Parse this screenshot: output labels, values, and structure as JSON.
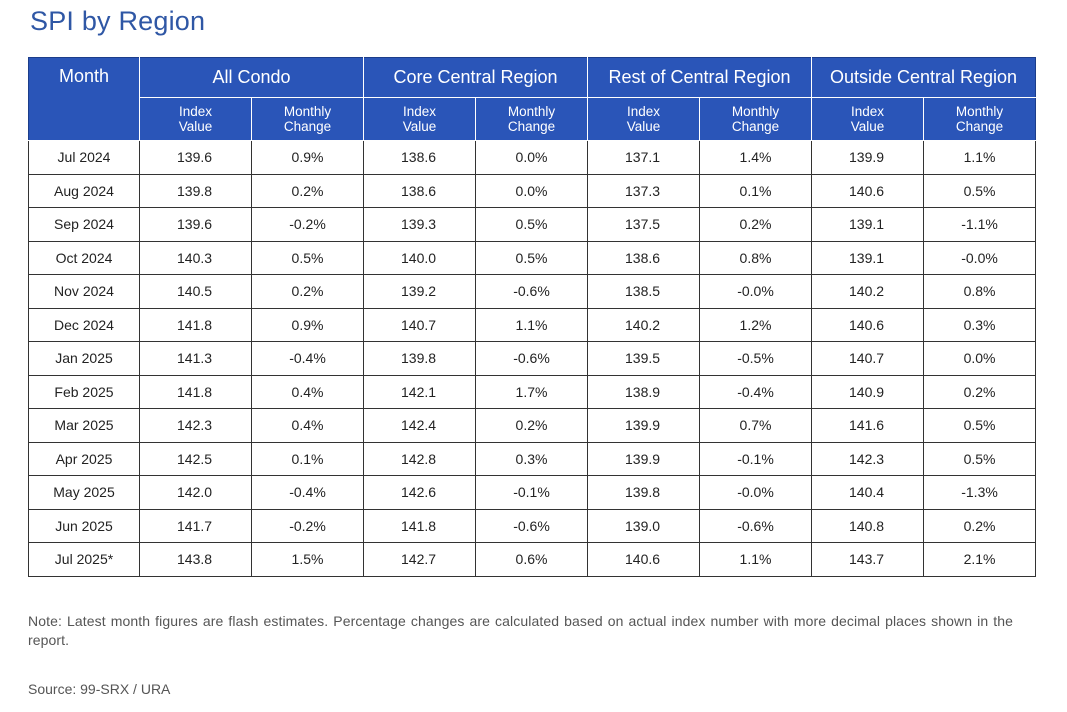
{
  "title": "SPI by Region",
  "header": {
    "month": "Month",
    "groups": [
      "All Condo",
      "Core Central Region",
      "Rest of Central Region",
      "Outside Central Region"
    ],
    "sub_index_1": "Index",
    "sub_index_2": "Value",
    "sub_change_1": "Monthly",
    "sub_change_2": "Change"
  },
  "rows": [
    [
      "Jul 2024",
      "139.6",
      "0.9%",
      "138.6",
      "0.0%",
      "137.1",
      "1.4%",
      "139.9",
      "1.1%"
    ],
    [
      "Aug 2024",
      "139.8",
      "0.2%",
      "138.6",
      "0.0%",
      "137.3",
      "0.1%",
      "140.6",
      "0.5%"
    ],
    [
      "Sep 2024",
      "139.6",
      "-0.2%",
      "139.3",
      "0.5%",
      "137.5",
      "0.2%",
      "139.1",
      "-1.1%"
    ],
    [
      "Oct 2024",
      "140.3",
      "0.5%",
      "140.0",
      "0.5%",
      "138.6",
      "0.8%",
      "139.1",
      "-0.0%"
    ],
    [
      "Nov 2024",
      "140.5",
      "0.2%",
      "139.2",
      "-0.6%",
      "138.5",
      "-0.0%",
      "140.2",
      "0.8%"
    ],
    [
      "Dec 2024",
      "141.8",
      "0.9%",
      "140.7",
      "1.1%",
      "140.2",
      "1.2%",
      "140.6",
      "0.3%"
    ],
    [
      "Jan 2025",
      "141.3",
      "-0.4%",
      "139.8",
      "-0.6%",
      "139.5",
      "-0.5%",
      "140.7",
      "0.0%"
    ],
    [
      "Feb 2025",
      "141.8",
      "0.4%",
      "142.1",
      "1.7%",
      "138.9",
      "-0.4%",
      "140.9",
      "0.2%"
    ],
    [
      "Mar 2025",
      "142.3",
      "0.4%",
      "142.4",
      "0.2%",
      "139.9",
      "0.7%",
      "141.6",
      "0.5%"
    ],
    [
      "Apr 2025",
      "142.5",
      "0.1%",
      "142.8",
      "0.3%",
      "139.9",
      "-0.1%",
      "142.3",
      "0.5%"
    ],
    [
      "May 2025",
      "142.0",
      "-0.4%",
      "142.6",
      "-0.1%",
      "139.8",
      "-0.0%",
      "140.4",
      "-1.3%"
    ],
    [
      "Jun 2025",
      "141.7",
      "-0.2%",
      "141.8",
      "-0.6%",
      "139.0",
      "-0.6%",
      "140.8",
      "0.2%"
    ],
    [
      "Jul 2025*",
      "143.8",
      "1.5%",
      "142.7",
      "0.6%",
      "140.6",
      "1.1%",
      "143.7",
      "2.1%"
    ]
  ],
  "note": "Note: Latest month figures are flash estimates. Percentage changes are calculated based on actual index number with more decimal places shown in the report.",
  "source": "Source: 99-SRX / URA"
}
